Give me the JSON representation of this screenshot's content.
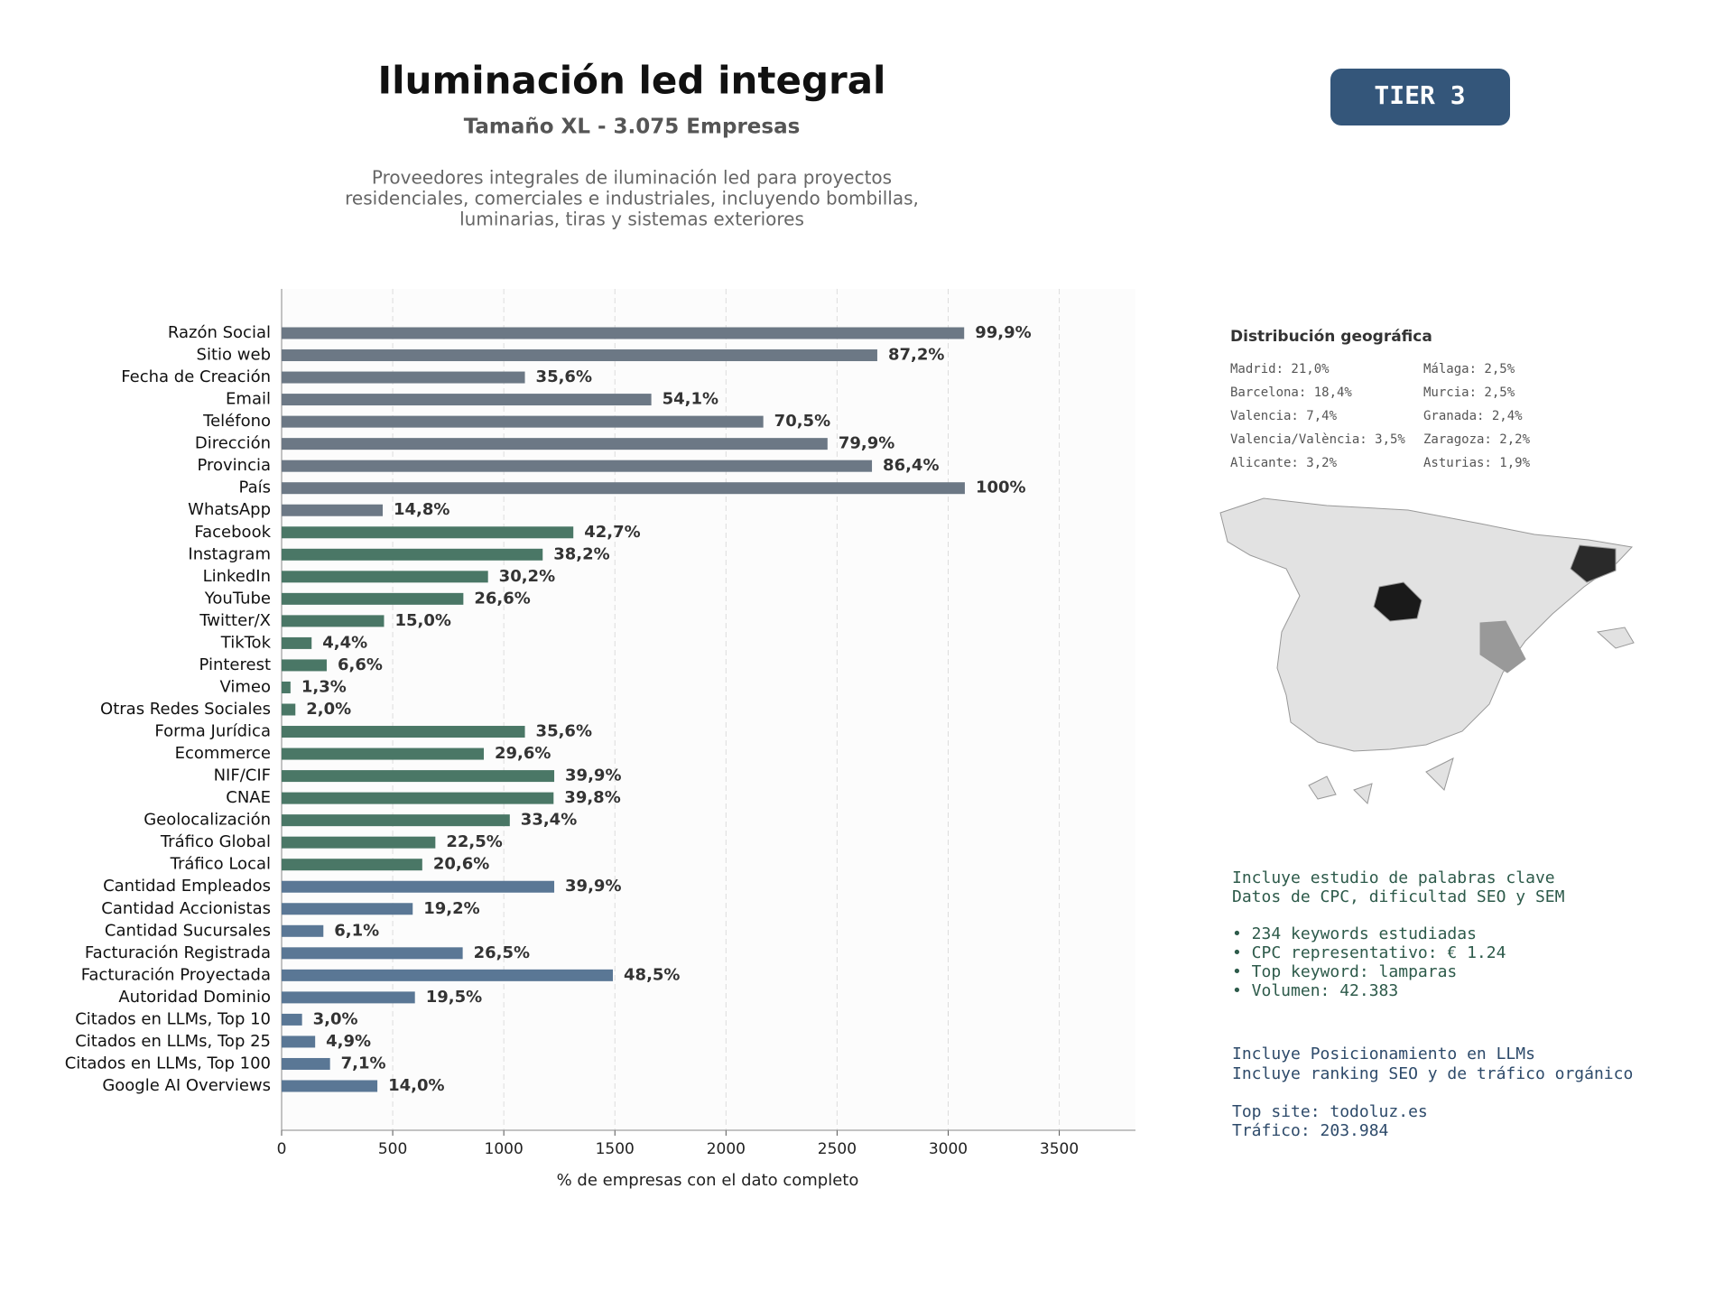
{
  "chart_data": {
    "type": "barh",
    "title": "Iluminación led integral",
    "subtitle": "Tamaño XL - 3.075 Empresas",
    "description": [
      "Proveedores integrales de iluminación led para proyectos",
      "residenciales, comerciales e industriales, incluyendo bombillas,",
      "luminarias, tiras y sistemas exteriores"
    ],
    "badge": "TIER 3",
    "xlabel": "% de empresas con el dato completo",
    "categories": [
      "Razón Social",
      "Sitio web",
      "Fecha de Creación",
      "Email",
      "Teléfono",
      "Dirección",
      "Provincia",
      "País",
      "WhatsApp",
      "Facebook",
      "Instagram",
      "LinkedIn",
      "YouTube",
      "Twitter/X",
      "TikTok",
      "Pinterest",
      "Vimeo",
      "Otras Redes Sociales",
      "Forma Jurídica",
      "Ecommerce",
      "NIF/CIF",
      "CNAE",
      "Geolocalización",
      "Tráfico Global",
      "Tráfico Local",
      "Cantidad Empleados",
      "Cantidad Accionistas",
      "Cantidad Sucursales",
      "Facturación Registrada",
      "Facturación Proyectada",
      "Autoridad Dominio",
      "Citados en LLMs, Top 10",
      "Citados en LLMs, Top 25",
      "Citados en LLMs, Top 100",
      "Google AI Overviews"
    ],
    "values": [
      3072,
      2681,
      1095,
      1664,
      2168,
      2457,
      2657,
      3075,
      455,
      1313,
      1175,
      929,
      818,
      461,
      135,
      203,
      40,
      62,
      1095,
      910,
      1227,
      1224,
      1027,
      692,
      633,
      1227,
      590,
      188,
      815,
      1491,
      600,
      92,
      151,
      218,
      431
    ],
    "value_labels": [
      "99,9%",
      "87,2%",
      "35,6%",
      "54,1%",
      "70,5%",
      "79,9%",
      "86,4%",
      "100%",
      "14,8%",
      "42,7%",
      "38,2%",
      "30,2%",
      "26,6%",
      "15,0%",
      "4,4%",
      "6,6%",
      "1,3%",
      "2,0%",
      "35,6%",
      "29,6%",
      "39,9%",
      "39,8%",
      "33,4%",
      "22,5%",
      "20,6%",
      "39,9%",
      "19,2%",
      "6,1%",
      "26,5%",
      "48,5%",
      "19,5%",
      "3,0%",
      "4,9%",
      "7,1%",
      "14,0%"
    ],
    "colors": [
      "#6c7885",
      "#6c7885",
      "#6c7885",
      "#6c7885",
      "#6c7885",
      "#6c7885",
      "#6c7885",
      "#6c7885",
      "#6c7885",
      "#4a7766",
      "#4a7766",
      "#4a7766",
      "#4a7766",
      "#4a7766",
      "#4a7766",
      "#4a7766",
      "#4a7766",
      "#4a7766",
      "#4a7766",
      "#4a7766",
      "#4a7766",
      "#4a7766",
      "#4a7766",
      "#4a7766",
      "#4a7766",
      "#5a7795",
      "#5a7795",
      "#5a7795",
      "#5a7795",
      "#5a7795",
      "#5a7795",
      "#5a7795",
      "#5a7795",
      "#5a7795",
      "#5a7795"
    ],
    "xlim": [
      0,
      3843
    ],
    "xticks": [
      0,
      500,
      1000,
      1500,
      2000,
      2500,
      3000,
      3500
    ],
    "grid": true
  },
  "geo": {
    "title": "Distribución geográfica",
    "items": [
      "Madrid: 21,0%",
      "Barcelona: 18,4%",
      "Valencia: 7,4%",
      "Valencia/València: 3,5%",
      "Alicante: 3,2%",
      "Málaga: 2,5%",
      "Murcia: 2,5%",
      "Granada: 2,4%",
      "Zaragoza: 2,2%",
      "Asturias: 1,9%"
    ]
  },
  "notes": {
    "seo": [
      "Incluye estudio de palabras clave",
      "Datos de CPC, dificultad SEO y SEM",
      "• 234 keywords estudiadas",
      "• CPC representativo: € 1.24",
      "• Top keyword: lamparas",
      "• Volumen: 42.383"
    ],
    "llm": [
      "Incluye Posicionamiento en LLMs",
      "Incluye ranking SEO y de tráfico orgánico",
      "Top site: todoluz.es",
      "Tráfico: 203.984"
    ]
  }
}
